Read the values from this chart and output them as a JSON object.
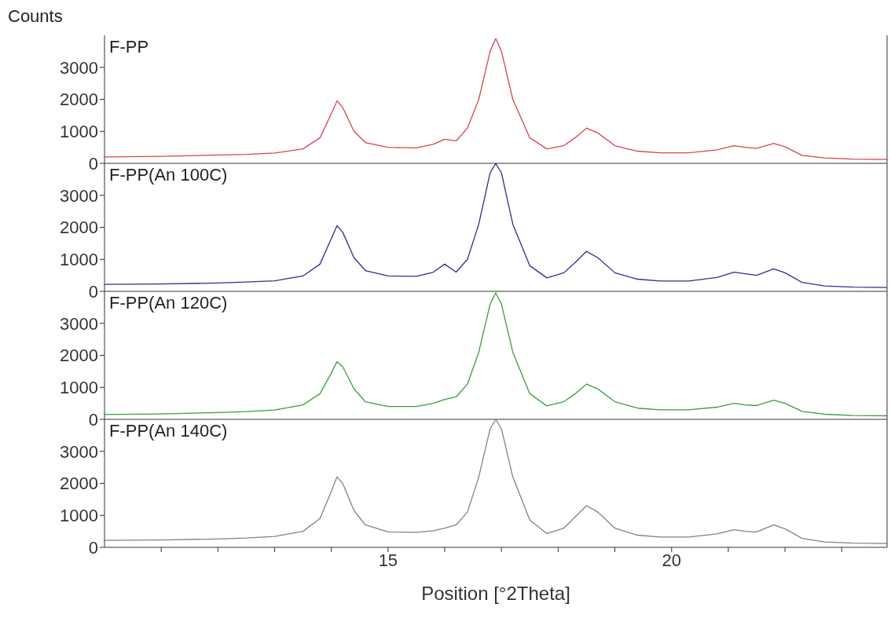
{
  "chart_data": [
    {
      "type": "line",
      "title": "F-PP",
      "ylabel": "Counts",
      "x": [
        10,
        11,
        12,
        12.5,
        13,
        13.5,
        13.8,
        14.0,
        14.1,
        14.2,
        14.4,
        14.6,
        15,
        15.5,
        15.8,
        16.0,
        16.2,
        16.4,
        16.6,
        16.8,
        16.9,
        17.0,
        17.2,
        17.5,
        17.8,
        18.1,
        18.3,
        18.5,
        18.7,
        19.0,
        19.4,
        19.8,
        20.3,
        20.8,
        21.1,
        21.3,
        21.5,
        21.8,
        22.0,
        22.3,
        22.7,
        23.2,
        23.8
      ],
      "series": [
        {
          "color": "#d9434f",
          "values": [
            200,
            220,
            260,
            280,
            320,
            450,
            800,
            1550,
            1950,
            1750,
            1000,
            650,
            500,
            480,
            600,
            750,
            700,
            1100,
            2000,
            3500,
            3900,
            3500,
            2000,
            800,
            450,
            550,
            800,
            1100,
            950,
            550,
            380,
            330,
            330,
            420,
            550,
            500,
            470,
            620,
            520,
            250,
            170,
            130,
            120
          ]
        }
      ],
      "xlim": [
        10,
        23.8
      ],
      "ylim": [
        0,
        4000
      ],
      "yticks": [
        0,
        1000,
        2000,
        3000
      ],
      "tick_labels": "y",
      "grid": false,
      "legend": false,
      "marker": "none",
      "line_style": "solid"
    },
    {
      "type": "line",
      "title": "F-PP(An 100C)",
      "x": [
        10,
        11,
        12,
        12.5,
        13,
        13.5,
        13.8,
        14.0,
        14.1,
        14.2,
        14.4,
        14.6,
        15,
        15.5,
        15.8,
        16.0,
        16.2,
        16.4,
        16.6,
        16.8,
        16.9,
        17.0,
        17.2,
        17.5,
        17.8,
        18.1,
        18.3,
        18.5,
        18.7,
        19.0,
        19.4,
        19.8,
        20.3,
        20.8,
        21.1,
        21.3,
        21.5,
        21.8,
        22.0,
        22.3,
        22.7,
        23.2,
        23.8
      ],
      "series": [
        {
          "color": "#2c2f8f",
          "values": [
            220,
            230,
            260,
            290,
            330,
            480,
            850,
            1650,
            2050,
            1850,
            1050,
            650,
            480,
            470,
            600,
            850,
            600,
            1000,
            2100,
            3700,
            4000,
            3700,
            2100,
            800,
            420,
            580,
            900,
            1250,
            1050,
            580,
            380,
            320,
            320,
            430,
            600,
            550,
            500,
            700,
            580,
            280,
            170,
            130,
            120
          ]
        }
      ],
      "xlim": [
        10,
        23.8
      ],
      "ylim": [
        0,
        4000
      ],
      "yticks": [
        0,
        1000,
        2000,
        3000
      ],
      "tick_labels": "y",
      "grid": false,
      "legend": false,
      "marker": "none",
      "line_style": "solid"
    },
    {
      "type": "line",
      "title": "F-PP(An 120C)",
      "x": [
        10,
        11,
        12,
        12.5,
        13,
        13.5,
        13.8,
        14.0,
        14.1,
        14.2,
        14.4,
        14.6,
        15,
        15.5,
        15.8,
        16.0,
        16.2,
        16.4,
        16.6,
        16.8,
        16.9,
        17.0,
        17.2,
        17.5,
        17.8,
        18.1,
        18.3,
        18.5,
        18.7,
        19.0,
        19.4,
        19.8,
        20.3,
        20.8,
        21.1,
        21.3,
        21.5,
        21.8,
        22.0,
        22.3,
        22.7,
        23.2,
        23.8
      ],
      "series": [
        {
          "color": "#3a9e3a",
          "values": [
            150,
            170,
            210,
            240,
            290,
            450,
            800,
            1450,
            1800,
            1650,
            950,
            550,
            400,
            400,
            500,
            620,
            700,
            1100,
            2100,
            3600,
            3950,
            3600,
            2100,
            800,
            420,
            550,
            800,
            1100,
            950,
            550,
            350,
            300,
            300,
            380,
            500,
            450,
            430,
            600,
            500,
            250,
            160,
            120,
            110
          ]
        }
      ],
      "xlim": [
        10,
        23.8
      ],
      "ylim": [
        0,
        4000
      ],
      "yticks": [
        0,
        1000,
        2000,
        3000
      ],
      "tick_labels": "y",
      "grid": false,
      "legend": false,
      "marker": "none",
      "line_style": "solid"
    },
    {
      "type": "line",
      "title": "F-PP(An 140C)",
      "xlabel": "Position [°2Theta]",
      "x": [
        10,
        11,
        12,
        12.5,
        13,
        13.5,
        13.8,
        14.0,
        14.1,
        14.2,
        14.4,
        14.6,
        15,
        15.5,
        15.8,
        16.0,
        16.2,
        16.4,
        16.6,
        16.8,
        16.9,
        17.0,
        17.2,
        17.5,
        17.8,
        18.1,
        18.3,
        18.5,
        18.7,
        19.0,
        19.4,
        19.8,
        20.3,
        20.8,
        21.1,
        21.3,
        21.5,
        21.8,
        22.0,
        22.3,
        22.7,
        23.2,
        23.8
      ],
      "series": [
        {
          "color": "#8a7e80",
          "values": [
            220,
            230,
            260,
            290,
            340,
            500,
            900,
            1750,
            2200,
            2000,
            1150,
            700,
            480,
            470,
            520,
            600,
            700,
            1100,
            2200,
            3700,
            4000,
            3700,
            2200,
            850,
            430,
            600,
            950,
            1300,
            1100,
            600,
            380,
            320,
            320,
            420,
            550,
            500,
            480,
            700,
            580,
            280,
            170,
            130,
            120
          ]
        }
      ],
      "xlim": [
        10,
        23.8
      ],
      "xticks": [
        {
          "value": 11,
          "label": null
        },
        {
          "value": 12,
          "label": null
        },
        {
          "value": 13,
          "label": null
        },
        {
          "value": 14,
          "label": null
        },
        15,
        {
          "value": 16,
          "label": null
        },
        {
          "value": 17,
          "label": null
        },
        {
          "value": 18,
          "label": null
        },
        {
          "value": 19,
          "label": null
        },
        20,
        {
          "value": 21,
          "label": null
        },
        {
          "value": 22,
          "label": null
        },
        {
          "value": 23,
          "label": null
        }
      ],
      "ylim": [
        0,
        4000
      ],
      "yticks": [
        0,
        1000,
        2000,
        3000
      ],
      "grid": false,
      "legend": false,
      "marker": "none",
      "line_style": "solid"
    }
  ]
}
